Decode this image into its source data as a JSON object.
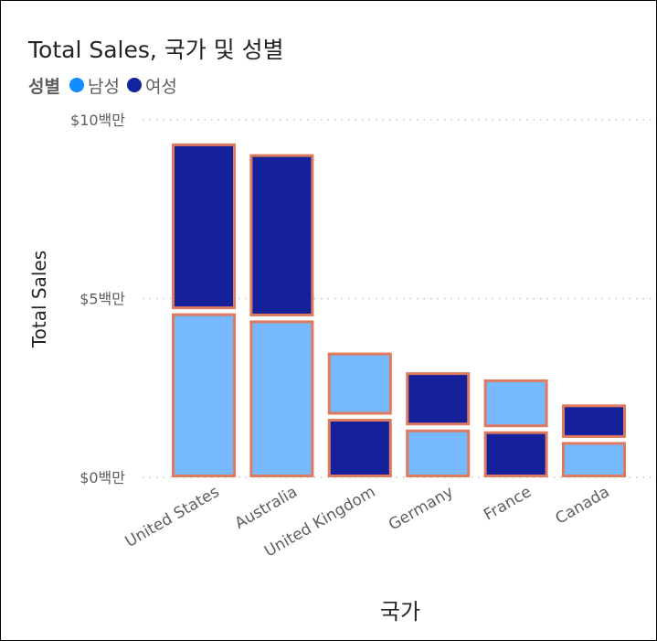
{
  "chart_data": {
    "type": "bar",
    "stacked": true,
    "title": "Total Sales, 국가 및 성별",
    "xlabel": "국가",
    "ylabel": "Total Sales",
    "legend_title": "성별",
    "legend_position": "top-left",
    "categories": [
      "United States",
      "Australia",
      "United Kingdom",
      "Germany",
      "France",
      "Canada"
    ],
    "series": [
      {
        "name": "남성",
        "color": "#76B9FF",
        "values": [
          4.6,
          4.4,
          1.8,
          1.35,
          1.4,
          1.0
        ]
      },
      {
        "name": "여성",
        "color": "#14219B",
        "values": [
          4.7,
          4.6,
          1.65,
          1.55,
          1.3,
          1.0
        ]
      }
    ],
    "stack_order": [
      [
        "남성",
        "여성"
      ],
      [
        "남성",
        "여성"
      ],
      [
        "여성",
        "남성"
      ],
      [
        "남성",
        "여성"
      ],
      [
        "여성",
        "남성"
      ],
      [
        "남성",
        "여성"
      ]
    ],
    "ylim": [
      0,
      10
    ],
    "yticks": [
      {
        "value": 0,
        "label": "$0백만"
      },
      {
        "value": 5,
        "label": "$5백만"
      },
      {
        "value": 10,
        "label": "$10백만"
      }
    ],
    "grid": true,
    "selection_border_color": "#E07A5F"
  }
}
